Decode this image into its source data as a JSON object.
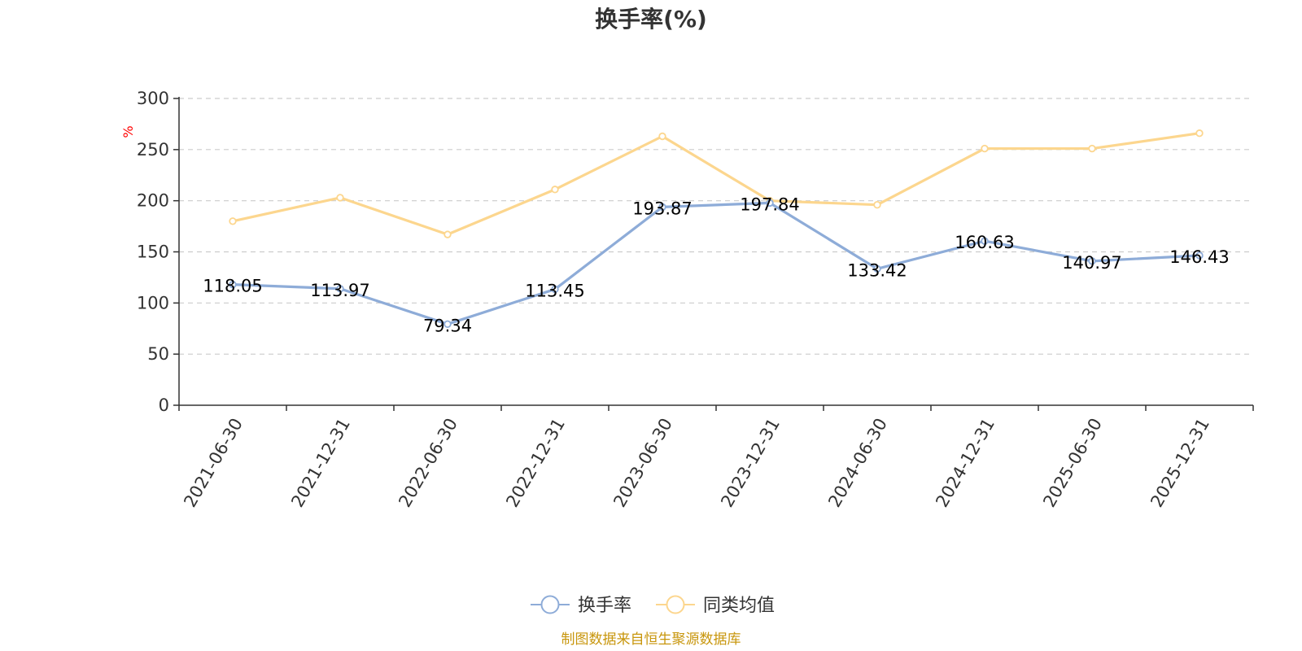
{
  "chart_data": {
    "type": "line",
    "title": "换手率(%)",
    "y_unit": "%",
    "categories": [
      "2021-06-30",
      "2021-12-31",
      "2022-06-30",
      "2022-12-31",
      "2023-06-30",
      "2023-12-31",
      "2024-06-30",
      "2024-12-31",
      "2025-06-30",
      "2025-12-31"
    ],
    "ylim": [
      0,
      300
    ],
    "yticks": [
      0,
      50,
      100,
      150,
      200,
      250,
      300
    ],
    "grid": true,
    "legend_position": "bottom-center",
    "series": [
      {
        "name": "换手率",
        "color": "#8eacd8",
        "values": [
          118.05,
          113.97,
          79.34,
          113.45,
          193.87,
          197.84,
          133.42,
          160.63,
          140.97,
          146.43
        ],
        "labels": [
          "118.05",
          "113.97",
          "79.34",
          "113.45",
          "193.87",
          "197.84",
          "133.42",
          "160.63",
          "140.97",
          "146.43"
        ]
      },
      {
        "name": "同类均值",
        "color": "#fcd68e",
        "values": [
          180,
          203,
          167,
          211,
          263,
          200,
          196,
          251,
          251,
          266
        ]
      }
    ],
    "source": "制图数据来自恒生聚源数据库"
  }
}
